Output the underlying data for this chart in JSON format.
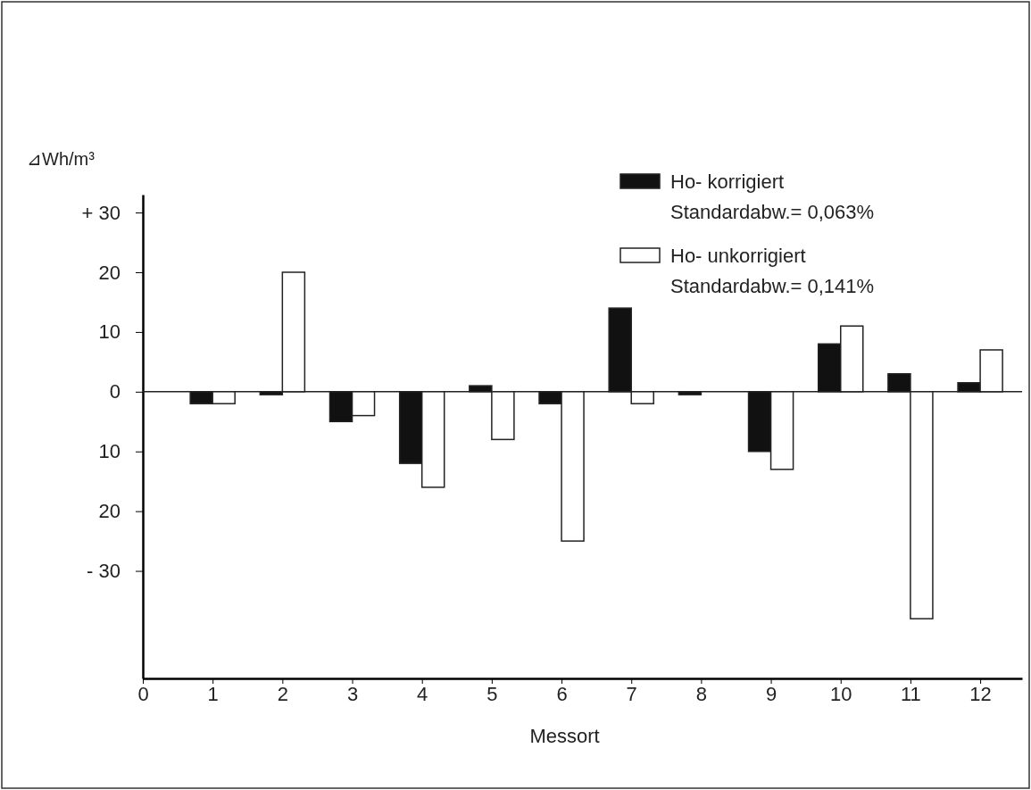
{
  "chart_data": {
    "type": "bar",
    "ylabel": "⊿Wh/m³",
    "xlabel": "Messort",
    "x": [
      1,
      2,
      3,
      4,
      5,
      6,
      7,
      8,
      9,
      10,
      11,
      12
    ],
    "series": [
      {
        "name": "Ho- korrigiert",
        "color": "#111111",
        "values": [
          -2,
          -0.5,
          -5,
          -12,
          1,
          -2,
          14,
          -0.5,
          -10,
          8,
          3,
          1.5
        ]
      },
      {
        "name": "Ho- unkorrigiert",
        "color": "#ffffff",
        "values": [
          -2,
          20,
          -4,
          -16,
          -8,
          -25,
          -2,
          0,
          -13,
          11,
          -38,
          7
        ]
      }
    ],
    "annotations": [
      "Standardabw.= 0,063%",
      "Standardabw.= 0,141%"
    ],
    "xlim": [
      0,
      12.6
    ],
    "xticks": [
      0,
      1,
      2,
      3,
      4,
      5,
      6,
      7,
      8,
      9,
      10,
      11,
      12
    ],
    "ylim": [
      -48,
      33
    ],
    "yticks": [
      {
        "value": 30,
        "label": "+ 30"
      },
      20,
      10,
      0,
      {
        "value": -10,
        "label": "10"
      },
      {
        "value": -20,
        "label": "20"
      },
      {
        "value": -30,
        "label": "- 30"
      }
    ],
    "ref_lines": [
      {
        "axis": "y",
        "value": 0
      }
    ],
    "legend": "top right",
    "grid": false
  }
}
